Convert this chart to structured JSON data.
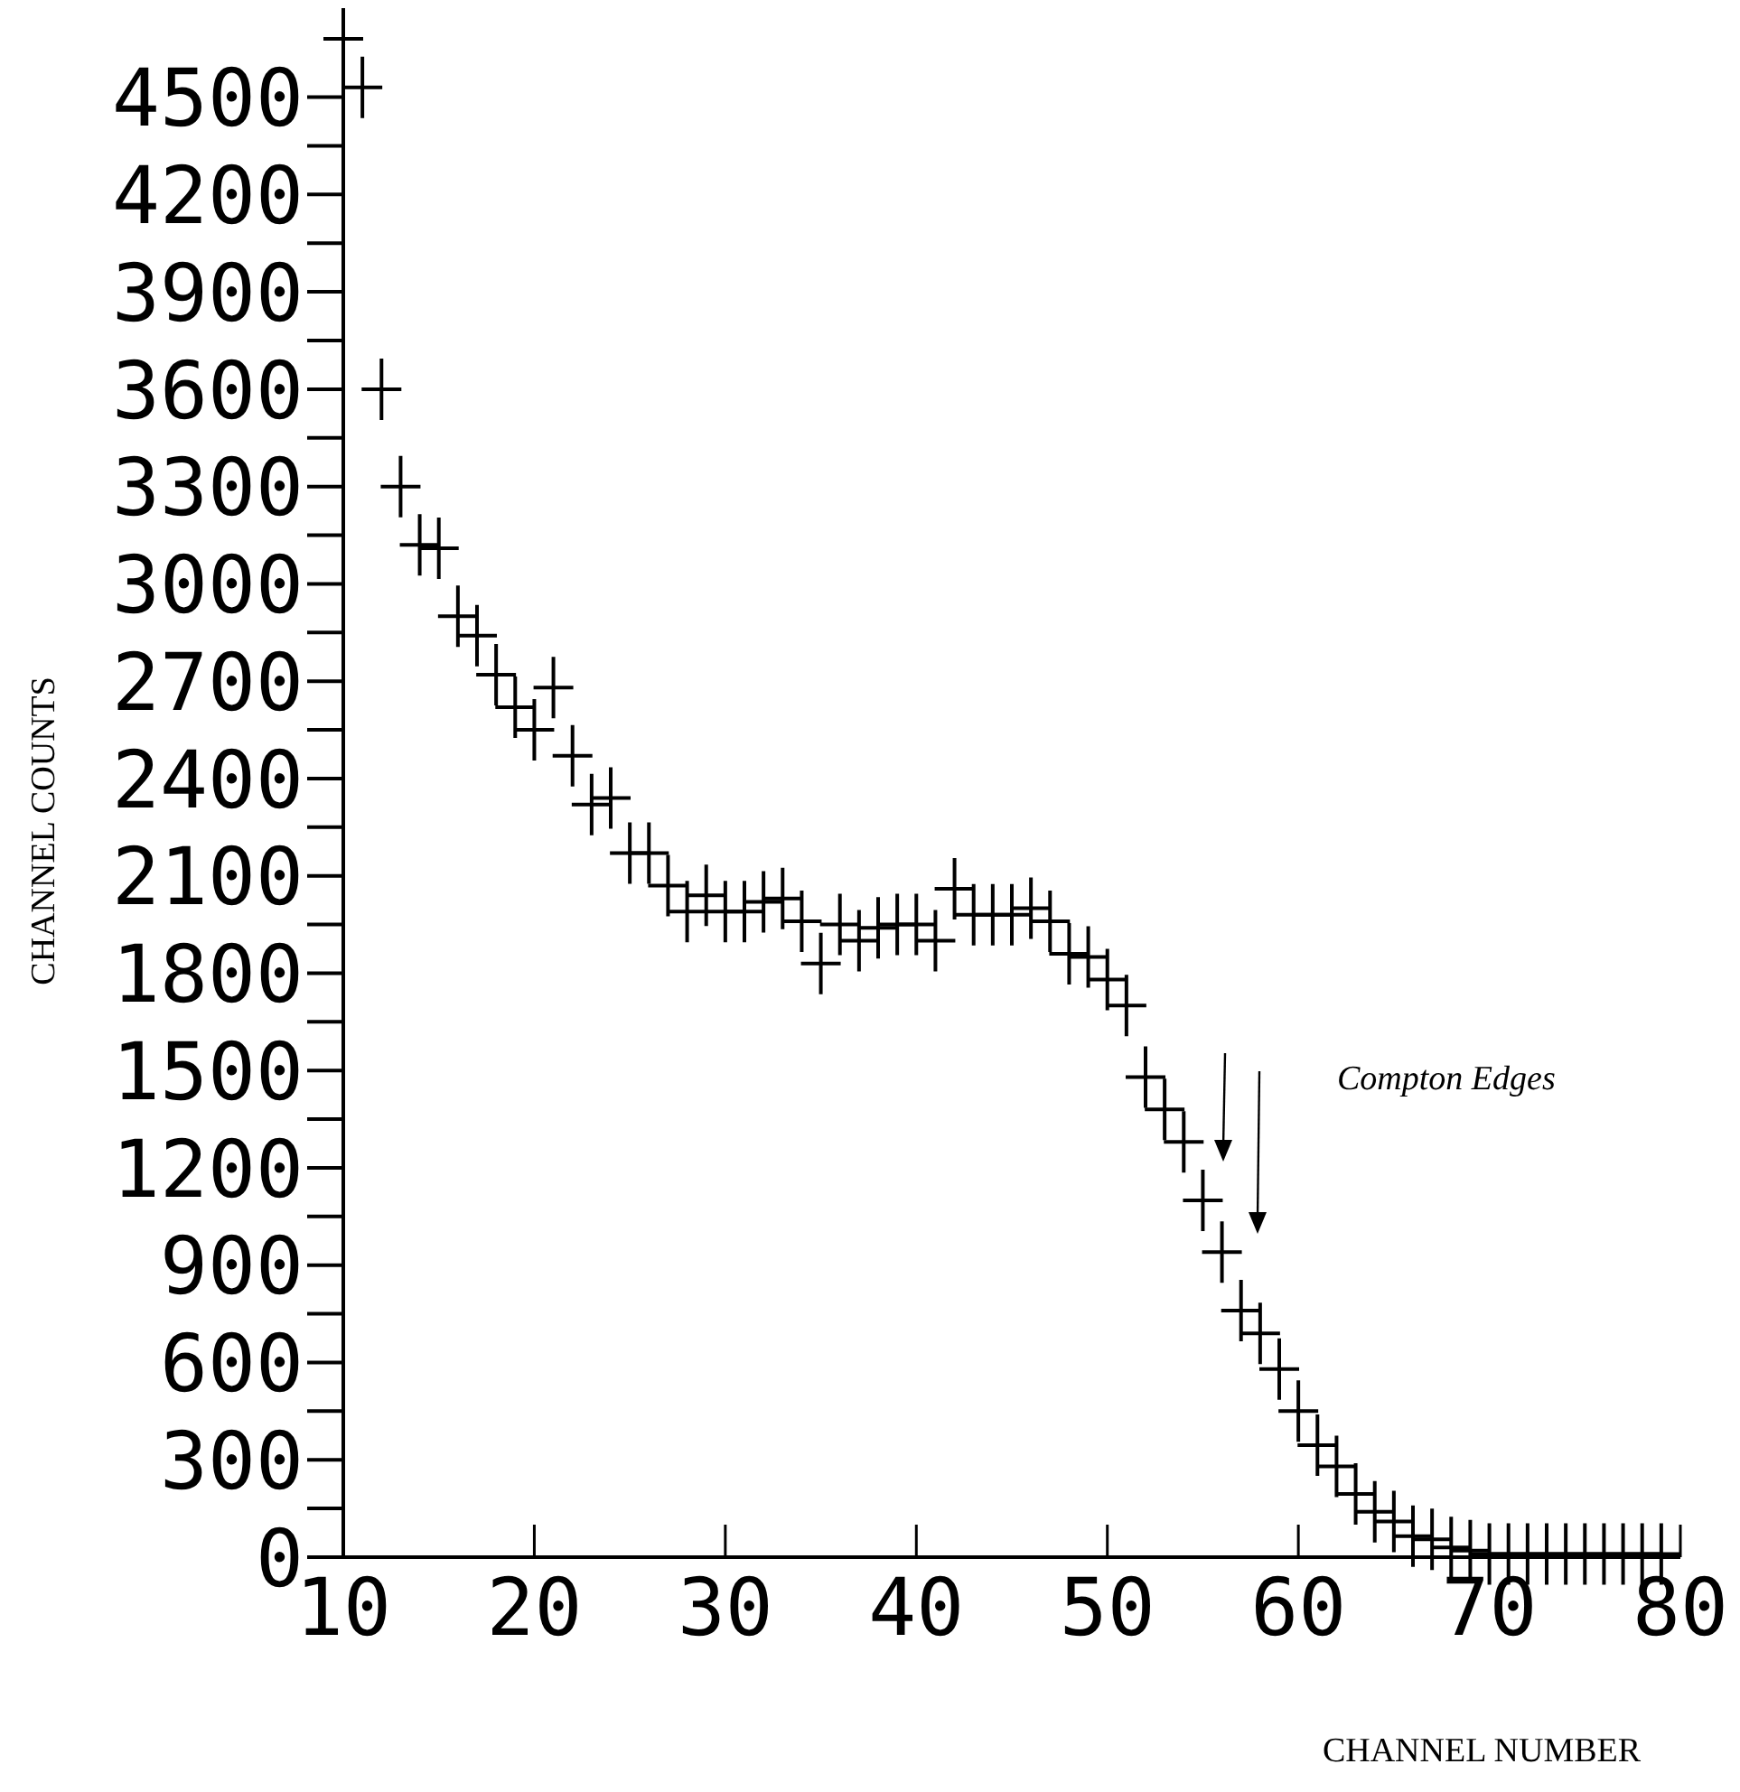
{
  "chart_data": {
    "type": "scatter",
    "xlabel": "CHANNEL NUMBER",
    "ylabel": "CHANNEL COUNTS",
    "marker": "cross",
    "color": "#000000",
    "x": [
      10,
      11,
      12,
      13,
      14,
      15,
      16,
      17,
      18,
      19,
      20,
      21,
      22,
      23,
      24,
      25,
      26,
      27,
      28,
      29,
      30,
      31,
      32,
      33,
      34,
      35,
      36,
      37,
      38,
      39,
      40,
      41,
      42,
      43,
      44,
      45,
      46,
      47,
      48,
      49,
      50,
      51,
      52,
      53,
      54,
      55,
      56,
      57,
      58,
      59,
      60,
      61,
      62,
      63,
      64,
      65,
      66,
      67,
      68,
      69,
      70,
      71,
      72,
      73,
      74,
      75,
      76,
      77,
      78,
      79
    ],
    "values": [
      4680,
      4530,
      3600,
      3300,
      3120,
      3110,
      2900,
      2840,
      2720,
      2620,
      2550,
      2680,
      2470,
      2320,
      2340,
      2170,
      2170,
      2070,
      1990,
      2040,
      1990,
      1990,
      2020,
      2030,
      1960,
      1830,
      1950,
      1900,
      1940,
      1950,
      1950,
      1900,
      2060,
      1980,
      1980,
      1980,
      2000,
      1960,
      1860,
      1850,
      1780,
      1700,
      1480,
      1380,
      1280,
      1100,
      940,
      760,
      690,
      580,
      450,
      345,
      280,
      195,
      140,
      110,
      65,
      55,
      30,
      20,
      10,
      10,
      10,
      10,
      10,
      10,
      10,
      10,
      10,
      10
    ],
    "xlim": [
      10,
      80
    ],
    "xticks": [
      10,
      20,
      30,
      40,
      50,
      60,
      70,
      80
    ],
    "ylim": [
      0,
      4700
    ],
    "yticks": [
      0,
      300,
      600,
      900,
      1200,
      1500,
      1800,
      2100,
      2400,
      2700,
      3000,
      3300,
      3600,
      3900,
      4200,
      4500
    ],
    "annotations": [
      "Compton Edges"
    ]
  }
}
